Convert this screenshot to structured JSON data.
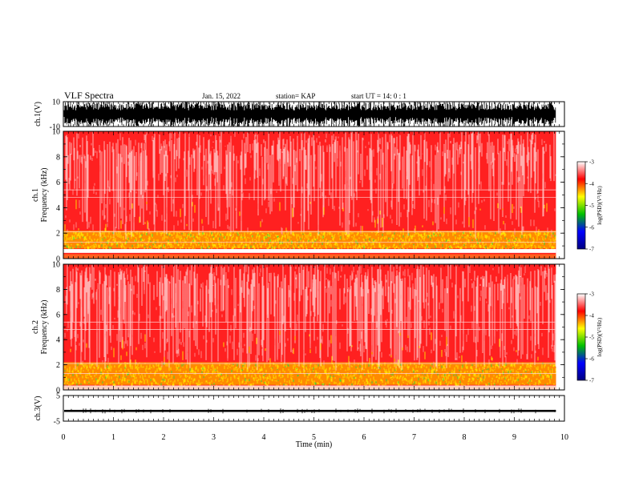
{
  "header": {
    "title": "VLF Spectra",
    "date": "Jan. 15, 2022",
    "station": "station= KAP",
    "start": "start  UT =   14: 0  : 1"
  },
  "chart_data": [
    {
      "id": "ch1-waveform",
      "type": "line",
      "ylabel": "ch.1(V)",
      "ylim": [
        -10,
        10
      ],
      "yticks": [
        "10",
        "-10"
      ],
      "xlim": [
        0,
        10
      ],
      "data_xmax": 9.83,
      "color": "#000000",
      "description_values": {
        "envelope_min": -10,
        "envelope_max": 10
      }
    },
    {
      "id": "ch1-spectrogram",
      "type": "heatmap",
      "ylabel": "ch.1\nFrequency (kHz)",
      "ylabel_line1": "ch.1",
      "ylabel_line2": "Frequency (kHz)",
      "ylim": [
        0,
        10
      ],
      "yticks": [
        "0",
        "2",
        "4",
        "6",
        "8",
        "10"
      ],
      "xlim": [
        0,
        10
      ],
      "data_xmax": 9.83,
      "band_gap_khz": [
        0.45,
        0.75
      ],
      "colorbar": {
        "label": "log(PSD)(V²/Hz)",
        "range": [
          -7,
          -3
        ],
        "ticks": [
          "-3",
          "-4",
          "-5",
          "-6",
          "-7"
        ],
        "colors": [
          "#000080",
          "#0000ff",
          "#00c000",
          "#ffff00",
          "#ff0000",
          "#ffffff"
        ]
      }
    },
    {
      "id": "ch2-spectrogram",
      "type": "heatmap",
      "ylabel_line1": "ch.2",
      "ylabel_line2": "Frequency (kHz)",
      "ylim": [
        0,
        10
      ],
      "yticks": [
        "0",
        "2",
        "4",
        "6",
        "8",
        "10"
      ],
      "xlim": [
        0,
        10
      ],
      "data_xmax": 9.83,
      "colorbar": {
        "label": "log(PSD)(V²/Hz)",
        "range": [
          -7,
          -3
        ],
        "ticks": [
          "-3",
          "-4",
          "-5",
          "-6",
          "-7"
        ],
        "colors": [
          "#000080",
          "#0000ff",
          "#00c000",
          "#ffff00",
          "#ff0000",
          "#ffffff"
        ]
      }
    },
    {
      "id": "ch3-waveform",
      "type": "line",
      "ylabel": "ch.3(V)",
      "ylim": [
        -5,
        5
      ],
      "yticks": [
        "5",
        "-5"
      ],
      "xlim": [
        0,
        10
      ],
      "data_xmax": 9.83,
      "color": "#000000",
      "band": [
        -1.4,
        -0.6
      ]
    }
  ],
  "xaxis": {
    "label": "Time (min)",
    "ticks": [
      "0",
      "1",
      "2",
      "3",
      "4",
      "5",
      "6",
      "7",
      "8",
      "9",
      "10"
    ],
    "range": [
      0,
      10
    ]
  }
}
